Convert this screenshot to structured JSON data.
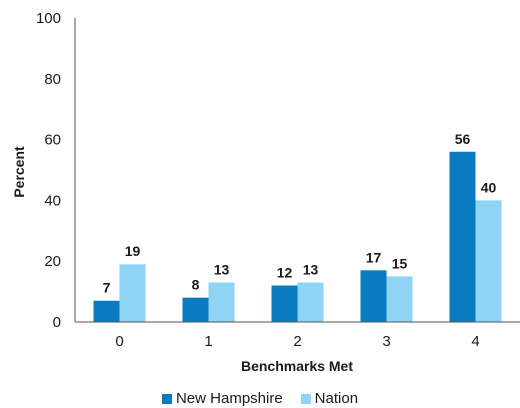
{
  "chart_data": {
    "type": "bar",
    "categories": [
      "0",
      "1",
      "2",
      "3",
      "4"
    ],
    "series": [
      {
        "name": "New Hampshire",
        "values": [
          7,
          8,
          12,
          17,
          56
        ],
        "color": "#0a7bc1"
      },
      {
        "name": "Nation",
        "values": [
          19,
          13,
          13,
          15,
          40
        ],
        "color": "#8fd3f5"
      }
    ],
    "title": "",
    "xlabel": "Benchmarks Met",
    "ylabel": "Percent",
    "ylim": [
      0,
      100
    ],
    "yticks": [
      "0",
      "20",
      "40",
      "60",
      "80",
      "100"
    ],
    "grid": false,
    "legend_position": "bottom-center"
  }
}
